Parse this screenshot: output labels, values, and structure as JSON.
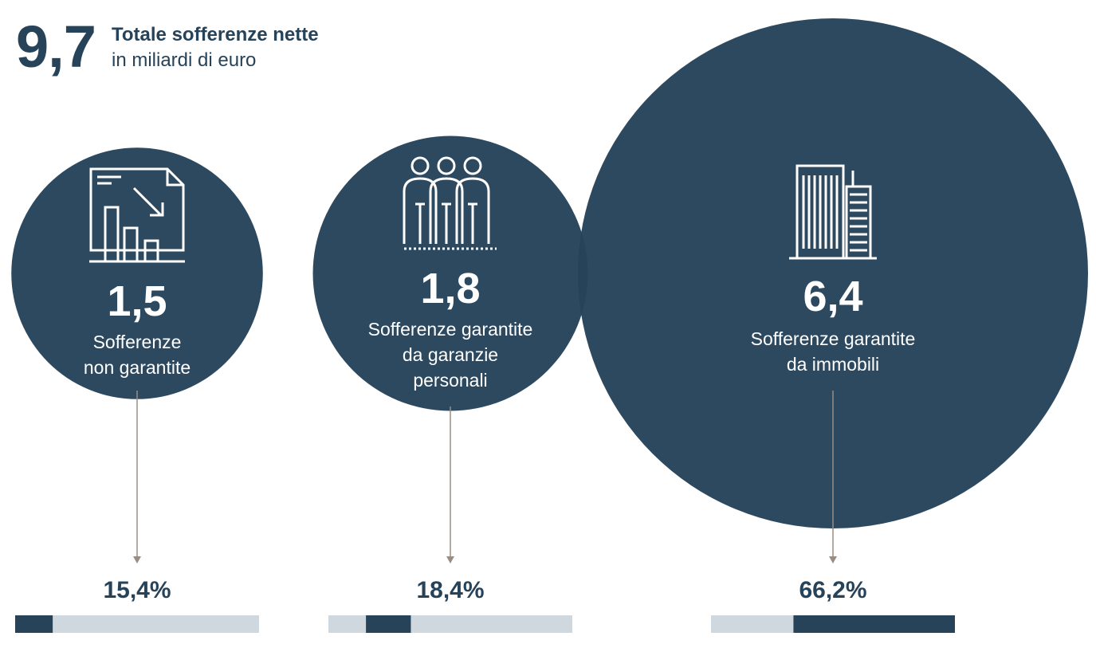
{
  "header": {
    "total_value": "9,7",
    "title": "Totale sofferenze nette",
    "subtitle": "in miliardi di euro"
  },
  "colors": {
    "circle": "#26435a",
    "bar_fill": "#26435a",
    "bar_track": "#cfd8de",
    "arrow": "#9a8d84",
    "label": "#ffffff"
  },
  "chart_data": {
    "type": "bubble",
    "total": 9.7,
    "unit": "miliardi di euro",
    "items": [
      {
        "value_label": "1,5",
        "value": 1.5,
        "label_lines": [
          "Sofferenze",
          "non garantite"
        ],
        "icon": "document-chart-down-icon",
        "share_label": "15,4%",
        "share": 15.4,
        "bar_offset": 0
      },
      {
        "value_label": "1,8",
        "value": 1.8,
        "label_lines": [
          "Sofferenze garantite",
          "da garanzie",
          "personali"
        ],
        "icon": "people-group-icon",
        "share_label": "18,4%",
        "share": 18.4,
        "bar_offset": 15.4
      },
      {
        "value_label": "6,4",
        "value": 6.4,
        "label_lines": [
          "Sofferenze garantite",
          "da immobili"
        ],
        "icon": "buildings-icon",
        "share_label": "66,2%",
        "share": 66.2,
        "bar_offset": 33.8
      }
    ]
  }
}
